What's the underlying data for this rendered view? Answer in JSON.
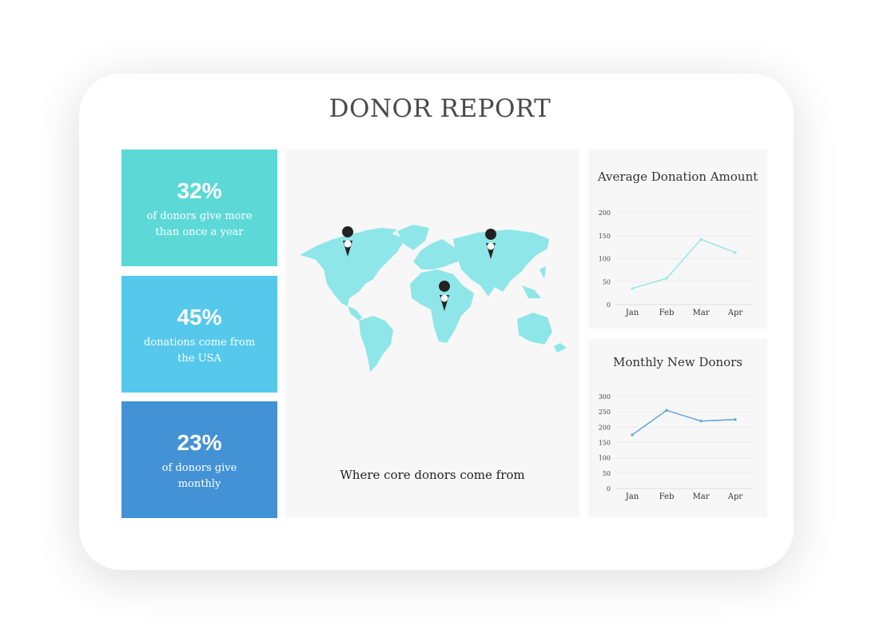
{
  "title": "DONOR REPORT",
  "stats": [
    {
      "value": "32%",
      "desc": "of donors give more than once a year",
      "color": "#5cd9d6"
    },
    {
      "value": "45%",
      "desc": "donations come from the USA",
      "color": "#56c8ec"
    },
    {
      "value": "23%",
      "desc": "of donors give monthly",
      "color": "#4392d5"
    }
  ],
  "map": {
    "caption": "Where core donors come from",
    "land_color": "#8ee6e8",
    "pin_color": "#222222",
    "pins": [
      "north-america",
      "russia",
      "central-africa"
    ]
  },
  "chart_data": [
    {
      "type": "line",
      "title": "Average Donation Amount",
      "categories": [
        "Jan",
        "Feb",
        "Mar",
        "Apr"
      ],
      "values": [
        35,
        57,
        142,
        113
      ],
      "ylim": [
        0,
        200
      ],
      "yticks": [
        0,
        50,
        100,
        150,
        200
      ],
      "color": "#8ee6e8",
      "grid": true
    },
    {
      "type": "line",
      "title": "Monthly New Donors",
      "categories": [
        "Jan",
        "Feb",
        "Mar",
        "Apr"
      ],
      "values": [
        175,
        255,
        220,
        225
      ],
      "ylim": [
        0,
        300
      ],
      "yticks": [
        0,
        50,
        100,
        150,
        200,
        250,
        300
      ],
      "color": "#5a9fdc",
      "grid": true
    }
  ]
}
